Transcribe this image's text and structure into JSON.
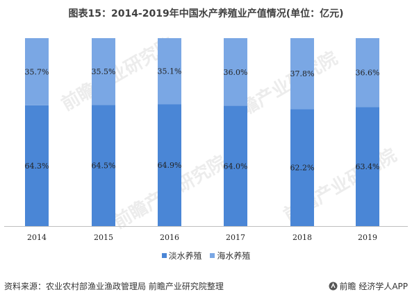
{
  "title": "图表15：2014-2019年中国水产养殖业产值情况(单位：亿元)",
  "chart_data": {
    "type": "bar",
    "stacked": true,
    "percent_stacked": true,
    "categories": [
      "2014",
      "2015",
      "2016",
      "2017",
      "2018",
      "2019"
    ],
    "series": [
      {
        "name": "淡水养殖",
        "values": [
          64.3,
          64.5,
          64.9,
          64.0,
          62.2,
          63.4
        ],
        "labels": [
          "64.3%",
          "64.5%",
          "64.9%",
          "64.0%",
          "62.2%",
          "63.4%"
        ],
        "color": "#4a86d6"
      },
      {
        "name": "海水养殖",
        "values": [
          35.7,
          35.5,
          35.1,
          36.0,
          37.8,
          36.6
        ],
        "labels": [
          "35.7%",
          "35.5%",
          "35.1%",
          "36.0%",
          "37.8%",
          "36.6%"
        ],
        "color": "#7aa7e4"
      }
    ],
    "ylim": [
      0,
      100
    ],
    "grid": false,
    "legend_position": "bottom"
  },
  "legend": {
    "items": [
      {
        "label": "淡水养殖",
        "color": "#4a86d6"
      },
      {
        "label": "海水养殖",
        "color": "#7aa7e4"
      }
    ]
  },
  "watermark": {
    "text": "前瞻产业研究院",
    "color": "#dcdcdc"
  },
  "footer": {
    "source": "资料来源：农业农村部渔业渔政管理局 前瞻产业研究院整理",
    "brand": "前瞻 经济学人APP",
    "brand_icon": "qianzhan-logo-icon"
  }
}
